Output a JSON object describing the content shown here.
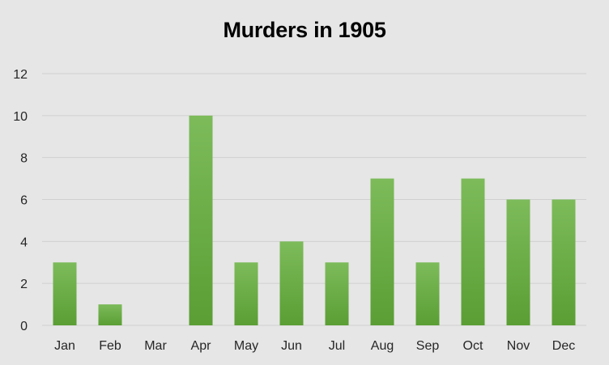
{
  "chart_data": {
    "type": "bar",
    "title": "Murders in 1905",
    "xlabel": "",
    "ylabel": "",
    "categories": [
      "Jan",
      "Feb",
      "Mar",
      "Apr",
      "May",
      "Jun",
      "Jul",
      "Aug",
      "Sep",
      "Oct",
      "Nov",
      "Dec"
    ],
    "values": [
      3,
      1,
      0,
      10,
      3,
      4,
      3,
      7,
      3,
      7,
      6,
      6
    ],
    "ylim": [
      0,
      12
    ],
    "yticks": [
      0,
      2,
      4,
      6,
      8,
      10,
      12
    ],
    "grid": true,
    "legend": "none",
    "colors": {
      "background": "#e6e6e6",
      "bar_top": "#7dbb5a",
      "bar_bottom": "#5a9e34",
      "grid": "#d0d0d0",
      "text": "#262626"
    }
  }
}
